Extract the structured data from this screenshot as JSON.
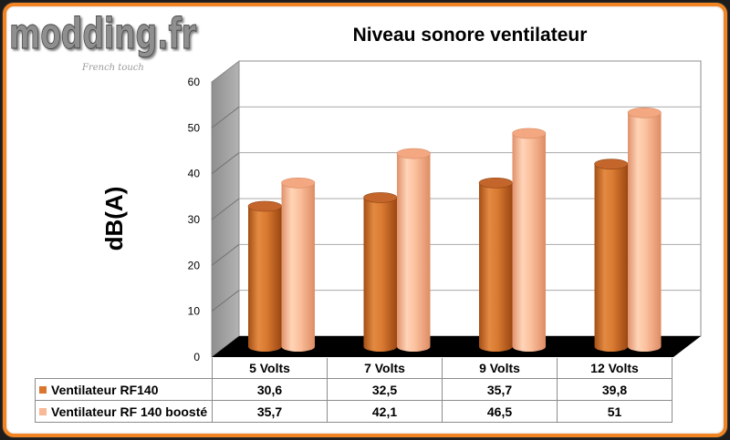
{
  "logo": {
    "text": "modding.fr",
    "tagline": "French touch"
  },
  "colors": {
    "frame_border": "#F28321",
    "floor": "#000000"
  },
  "chart_data": {
    "type": "bar",
    "bar_shape": "cylinder",
    "three_d": true,
    "title": "Niveau sonore ventilateur",
    "xlabel": "",
    "ylabel": "dB(A)",
    "ylim": [
      0,
      60
    ],
    "yticks": [
      0,
      10,
      20,
      30,
      40,
      50,
      60
    ],
    "grid": true,
    "legend": "bottom-table",
    "categories": [
      "5 Volts",
      "7 Volts",
      "9 Volts",
      "12 Volts"
    ],
    "series": [
      {
        "name": "Ventilateur RF140",
        "values": [
          30.6,
          32.5,
          35.7,
          39.8
        ],
        "value_labels": [
          "30,6",
          "32,5",
          "35,7",
          "39,8"
        ],
        "color": "#D9772E"
      },
      {
        "name": "Ventilateur RF 140 boosté",
        "values": [
          35.7,
          42.1,
          46.5,
          51
        ],
        "value_labels": [
          "35,7",
          "42,1",
          "46,5",
          "51"
        ],
        "color": "#F9B896"
      }
    ]
  }
}
